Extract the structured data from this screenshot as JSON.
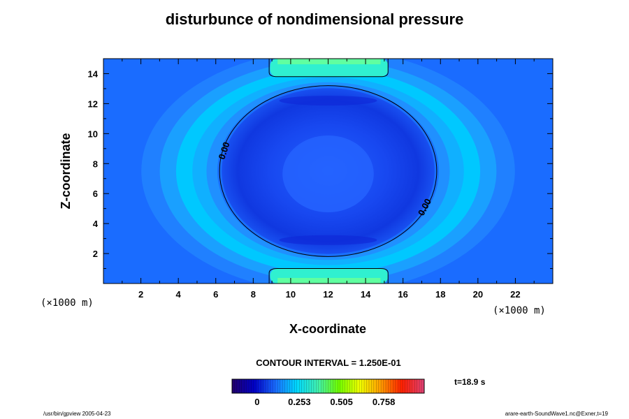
{
  "chart_data": {
    "type": "heatmap",
    "title": "disturbunce of nondimensional pressure",
    "xlabel": "X-coordinate",
    "ylabel": "Z-coordinate",
    "x_unit": "(×1000 m)",
    "y_unit": "(×1000 m)",
    "xlim": [
      0,
      24
    ],
    "ylim": [
      0,
      15
    ],
    "x_ticks": [
      2,
      4,
      6,
      8,
      10,
      12,
      14,
      16,
      18,
      20,
      22
    ],
    "y_ticks": [
      2,
      4,
      6,
      8,
      10,
      12,
      14
    ],
    "contour_interval_text": "CONTOUR INTERVAL = 1.250E-01",
    "contour_label": "0.00",
    "zero_contour": {
      "center": [
        12,
        7.5
      ],
      "radius_x": 5.8,
      "radius_z": 5.7
    },
    "colorbar": {
      "tick_labels": [
        "0",
        "0.253",
        "0.505",
        "0.758"
      ],
      "tick_values": [
        0,
        0.253,
        0.505,
        0.758
      ],
      "range": [
        -0.15,
        1.0
      ],
      "colormap": [
        "#200070",
        "#0000c8",
        "#1a6cff",
        "#00d8ff",
        "#40f0b0",
        "#70ff00",
        "#f0ff00",
        "#ff9a00",
        "#ff2000",
        "#e04070"
      ]
    },
    "time_label": "t=18.9 s",
    "colors": {
      "background": "#1a6cff",
      "inner": "#1440f0",
      "mid": "#2090ff",
      "light": "#00c8ff",
      "peak": "#30f0d0"
    }
  },
  "footer": {
    "left": "/usr/bin/gpview 2005-04-23",
    "right": "arare-earth-SoundWave1.nc@Exner,t=19"
  }
}
